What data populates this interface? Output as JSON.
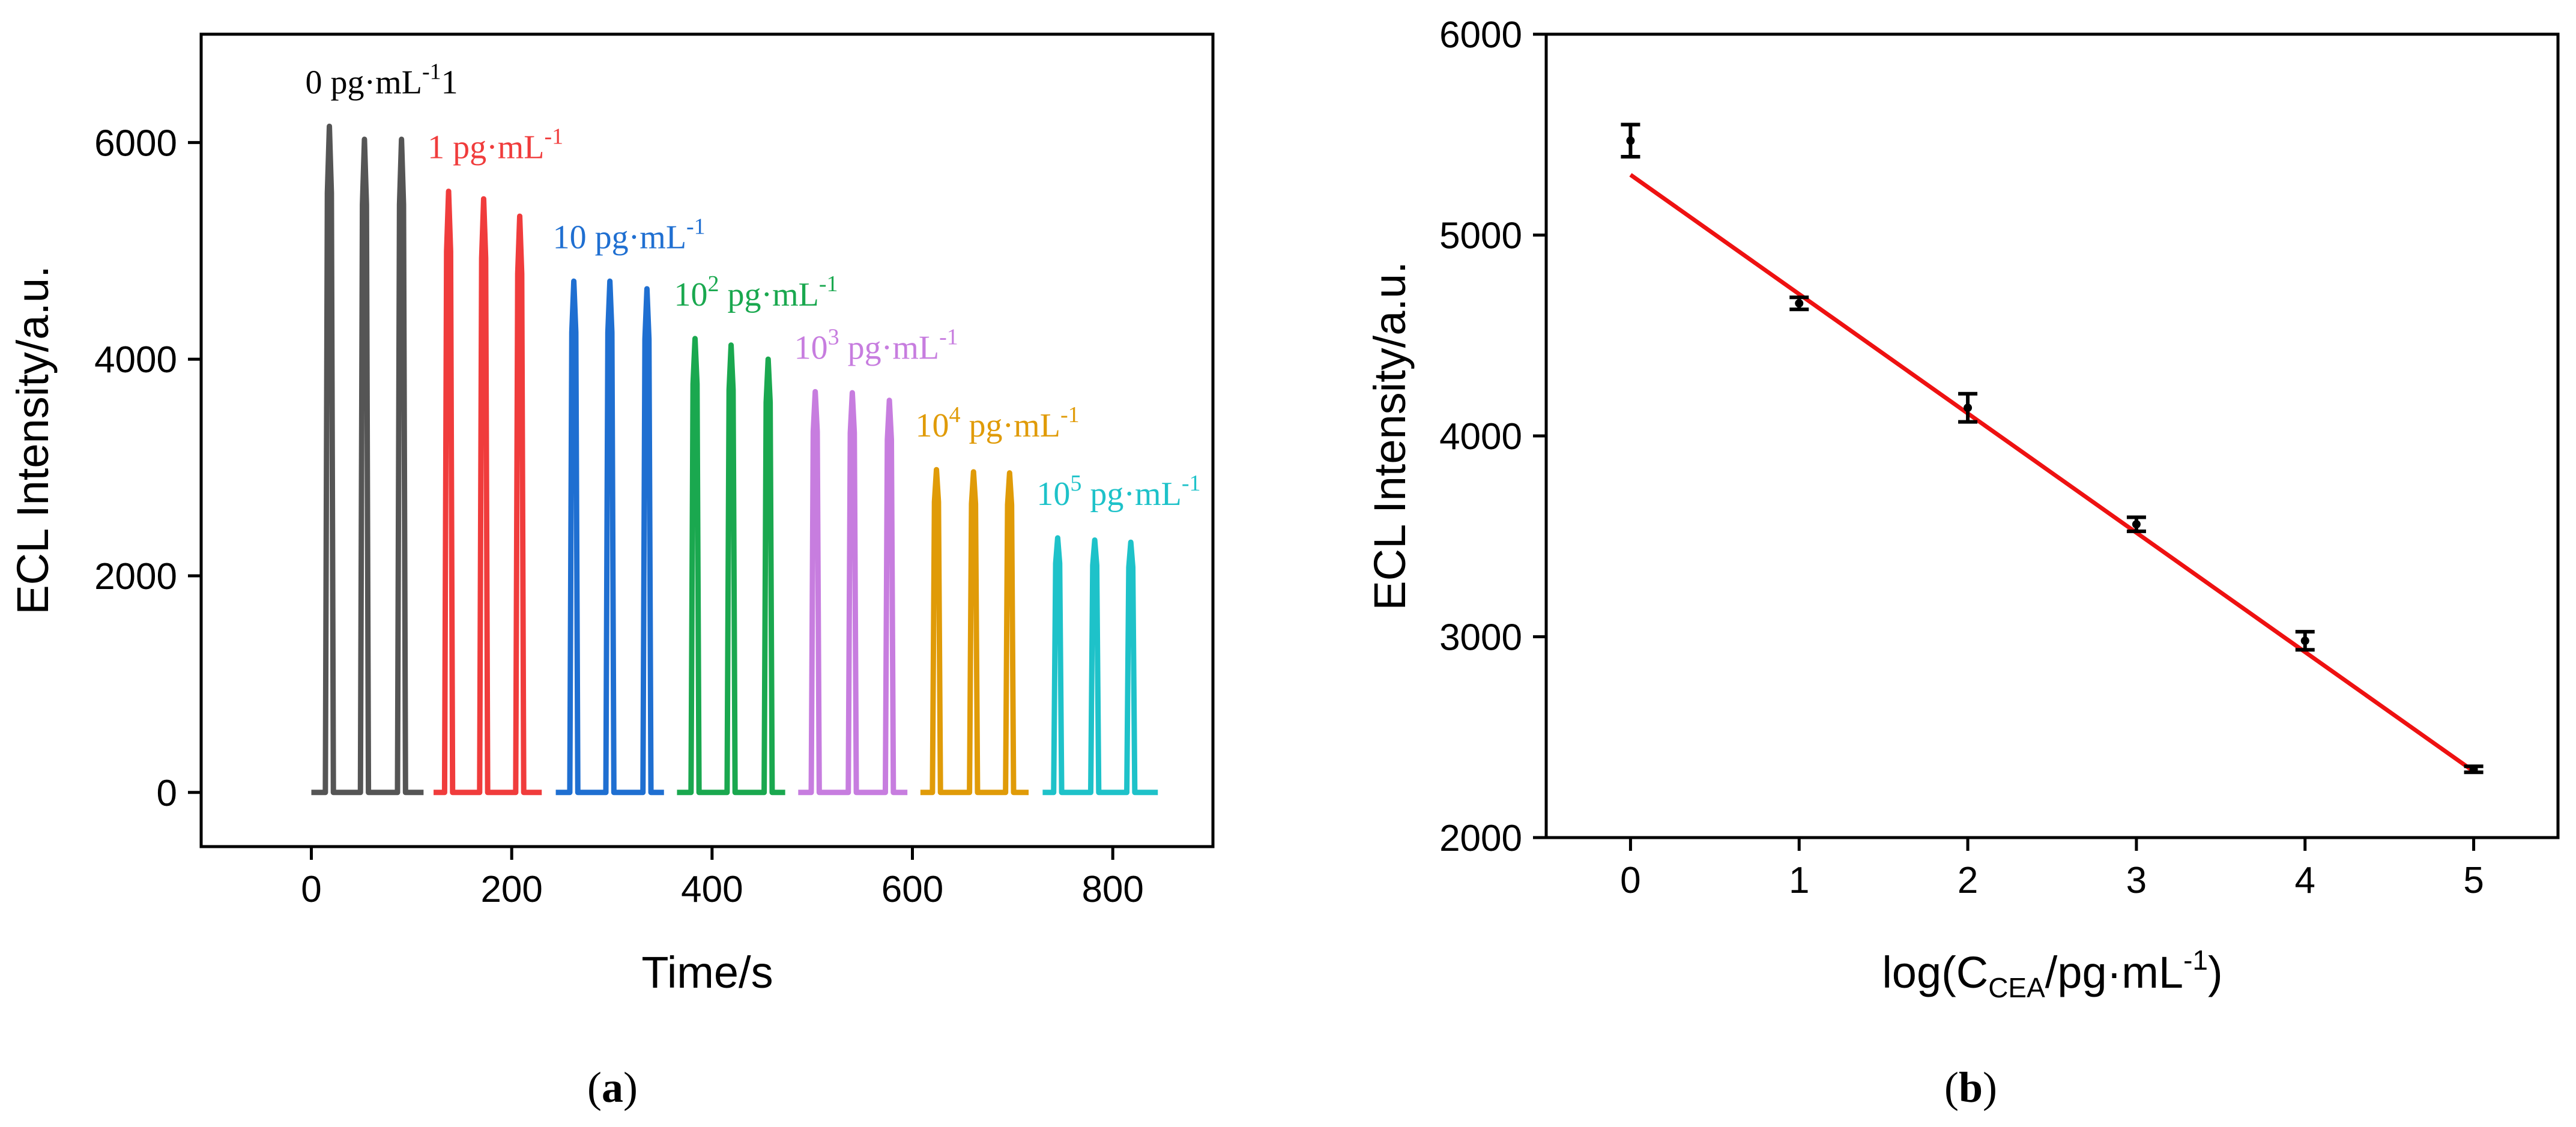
{
  "chart_data": [
    {
      "type": "line",
      "panel_label": "(a)",
      "panel_letter": "a",
      "xlabel": "Time/s",
      "ylabel": "ECL Intensity/a.u.",
      "xlim": [
        -110,
        900
      ],
      "ylim": [
        -500,
        7000
      ],
      "xticks": [
        0,
        200,
        400,
        600,
        800
      ],
      "yticks": [
        0,
        2000,
        4000,
        6000
      ],
      "tick_labels_x": [
        "0",
        "200",
        "400",
        "600",
        "800"
      ],
      "tick_labels_y": [
        "0",
        "2000",
        "4000",
        "6000"
      ],
      "peak_width_s": 4,
      "series": [
        {
          "name": "0 pg·mL-1",
          "label_base": "0 pg·mL",
          "label_sup": "-1",
          "label_suffix": "1",
          "color": "#555555",
          "t_start": 0,
          "t_end": 112,
          "peak_times": [
            18,
            53,
            90
          ],
          "peak_values": [
            6150,
            6030,
            6030
          ]
        },
        {
          "name": "1 pg·mL-1",
          "label_base": "1 pg·mL",
          "label_sup": "-1",
          "label_suffix": "",
          "color": "#f03c3c",
          "t_start": 122,
          "t_end": 230,
          "peak_times": [
            137,
            172,
            208
          ],
          "peak_values": [
            5550,
            5480,
            5320
          ]
        },
        {
          "name": "10 pg·mL-1",
          "label_base": "10 pg·mL",
          "label_sup": "-1",
          "label_suffix": "",
          "color": "#1f6fd1",
          "t_start": 244,
          "t_end": 352,
          "peak_times": [
            262,
            298,
            335
          ],
          "peak_values": [
            4720,
            4720,
            4650
          ]
        },
        {
          "name": "10^2 pg·mL-1",
          "label_pre": "10",
          "label_exp": "2",
          "label_base": " pg·mL",
          "label_sup": "-1",
          "label_suffix": "",
          "color": "#1aa84f",
          "t_start": 365,
          "t_end": 473,
          "peak_times": [
            383,
            419,
            456
          ],
          "peak_values": [
            4190,
            4130,
            4000
          ]
        },
        {
          "name": "10^3 pg·mL-1",
          "label_pre": "10",
          "label_exp": "3",
          "label_base": " pg·mL",
          "label_sup": "-1",
          "label_suffix": "",
          "color": "#c77ddf",
          "t_start": 486,
          "t_end": 595,
          "peak_times": [
            503,
            540,
            577
          ],
          "peak_values": [
            3700,
            3690,
            3620
          ]
        },
        {
          "name": "10^4 pg·mL-1",
          "label_pre": "10",
          "label_exp": "4",
          "label_base": " pg·mL",
          "label_sup": "-1",
          "label_suffix": "",
          "color": "#e09b08",
          "t_start": 608,
          "t_end": 716,
          "peak_times": [
            624,
            661,
            697
          ],
          "peak_values": [
            2980,
            2960,
            2950
          ]
        },
        {
          "name": "10^5 pg·mL-1",
          "label_pre": "10",
          "label_exp": "5",
          "label_base": " pg·mL",
          "label_sup": "-1",
          "label_suffix": "",
          "color": "#1ec2c9",
          "t_start": 730,
          "t_end": 845,
          "peak_times": [
            745,
            782,
            818
          ],
          "peak_values": [
            2350,
            2330,
            2310
          ]
        }
      ]
    },
    {
      "type": "scatter",
      "panel_label": "(b)",
      "panel_letter": "b",
      "xlabel_pre": "log(C",
      "xlabel_sub": "CEA",
      "xlabel_mid": "/pg·mL",
      "xlabel_sup": "-1",
      "xlabel_post": ")",
      "ylabel": "ECL Intensity/a.u.",
      "xlim": [
        -0.5,
        5.5
      ],
      "ylim": [
        2000,
        6000
      ],
      "xticks": [
        0,
        1,
        2,
        3,
        4,
        5
      ],
      "yticks": [
        2000,
        3000,
        4000,
        5000,
        6000
      ],
      "tick_labels_x": [
        "0",
        "1",
        "2",
        "3",
        "4",
        "5"
      ],
      "tick_labels_y": [
        "2000",
        "3000",
        "4000",
        "5000",
        "6000"
      ],
      "x": [
        0,
        1,
        2,
        3,
        4,
        5
      ],
      "y": [
        5470,
        4660,
        4140,
        3560,
        2980,
        2340
      ],
      "y_err": [
        80,
        30,
        70,
        35,
        45,
        15
      ],
      "fit_line": {
        "x": [
          0,
          5
        ],
        "y": [
          5300,
          2330
        ],
        "color": "#ee1111"
      }
    }
  ]
}
